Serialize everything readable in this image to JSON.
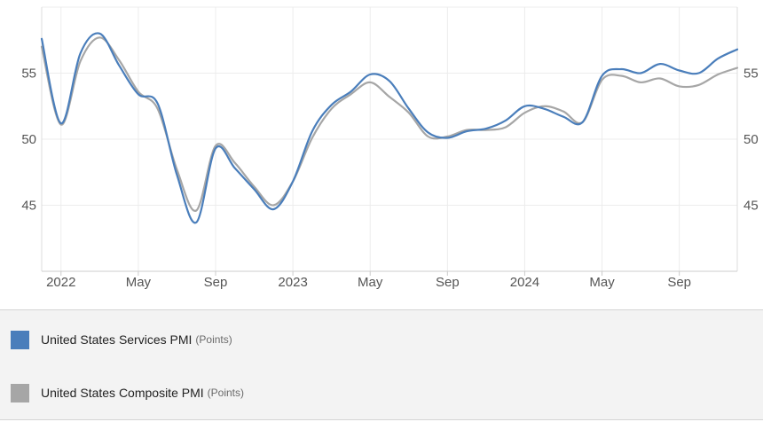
{
  "chart_data": {
    "type": "line",
    "x_ticks": [
      "2022",
      "May",
      "Sep",
      "2023",
      "May",
      "Sep",
      "2024",
      "May",
      "Sep"
    ],
    "y_ticks_left": [
      "45",
      "50",
      "55"
    ],
    "y_ticks_right": [
      "45",
      "50",
      "55"
    ],
    "ylim": [
      40,
      60
    ],
    "grid": true,
    "legend_position": "bottom",
    "series": [
      {
        "name": "United States Services PMI",
        "unit": "(Points)",
        "color": "#4a7ebb",
        "x": [
          "2021-12",
          "2022-01",
          "2022-02",
          "2022-03",
          "2022-04",
          "2022-05",
          "2022-06",
          "2022-07",
          "2022-08",
          "2022-09",
          "2022-10",
          "2022-11",
          "2022-12",
          "2023-01",
          "2023-02",
          "2023-03",
          "2023-04",
          "2023-05",
          "2023-06",
          "2023-07",
          "2023-08",
          "2023-09",
          "2023-10",
          "2023-11",
          "2023-12",
          "2024-01",
          "2024-02",
          "2024-03",
          "2024-04",
          "2024-05",
          "2024-06",
          "2024-07",
          "2024-08",
          "2024-09",
          "2024-10",
          "2024-11",
          "2024-12"
        ],
        "values": [
          57.6,
          51.2,
          56.5,
          58.0,
          55.6,
          53.4,
          52.7,
          47.3,
          43.7,
          49.3,
          47.8,
          46.2,
          44.7,
          46.8,
          50.6,
          52.6,
          53.6,
          54.9,
          54.4,
          52.3,
          50.5,
          50.1,
          50.6,
          50.8,
          51.4,
          52.5,
          52.3,
          51.7,
          51.3,
          54.8,
          55.3,
          55.0,
          55.7,
          55.2,
          55.0,
          56.1,
          56.8
        ]
      },
      {
        "name": "United States Composite PMI",
        "unit": "(Points)",
        "color": "#a6a6a6",
        "x": [
          "2021-12",
          "2022-01",
          "2022-02",
          "2022-03",
          "2022-04",
          "2022-05",
          "2022-06",
          "2022-07",
          "2022-08",
          "2022-09",
          "2022-10",
          "2022-11",
          "2022-12",
          "2023-01",
          "2023-02",
          "2023-03",
          "2023-04",
          "2023-05",
          "2023-06",
          "2023-07",
          "2023-08",
          "2023-09",
          "2023-10",
          "2023-11",
          "2023-12",
          "2024-01",
          "2024-02",
          "2024-03",
          "2024-04",
          "2024-05",
          "2024-06",
          "2024-07",
          "2024-08",
          "2024-09",
          "2024-10",
          "2024-11",
          "2024-12"
        ],
        "values": [
          57.0,
          51.1,
          55.9,
          57.7,
          56.0,
          53.6,
          52.3,
          47.7,
          44.6,
          49.5,
          48.2,
          46.4,
          45.0,
          46.8,
          50.1,
          52.3,
          53.4,
          54.3,
          53.2,
          52.0,
          50.2,
          50.2,
          50.7,
          50.7,
          50.9,
          52.0,
          52.5,
          52.1,
          51.3,
          54.5,
          54.8,
          54.3,
          54.6,
          54.0,
          54.1,
          54.9,
          55.4
        ]
      }
    ]
  }
}
